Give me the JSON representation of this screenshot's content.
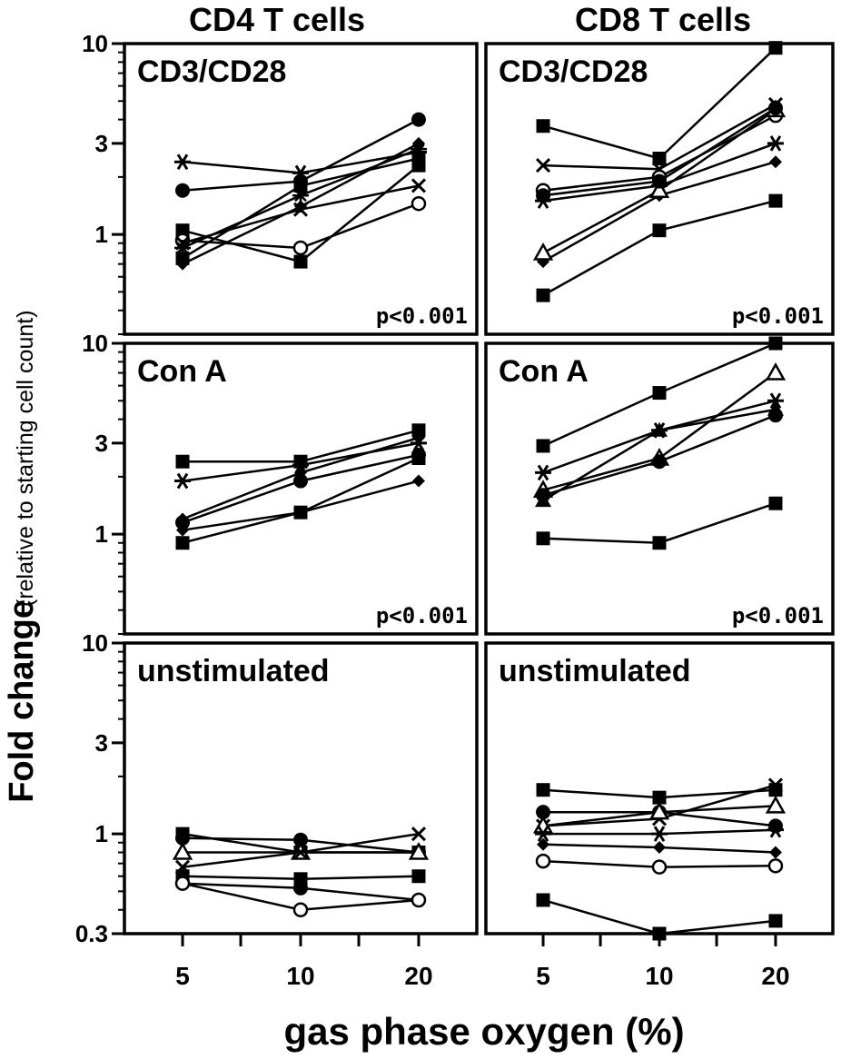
{
  "figure": {
    "column_titles": [
      "CD4 T cells",
      "CD8 T cells"
    ],
    "y_label_main": "Fold change",
    "y_label_sub": "(relative to starting cell count)",
    "x_label": "gas phase oxygen (%)",
    "x_ticks": [
      "5",
      "10",
      "20"
    ],
    "y_ticks_rows_1_2": [
      "10",
      "3",
      "1"
    ],
    "y_ticks_row_3": [
      "10",
      "3",
      "1",
      "0.3"
    ]
  },
  "chart_data": [
    {
      "type": "line",
      "column": "CD4 T cells",
      "row": 0,
      "label": "CD3/CD28",
      "pvalue": "p<0.001",
      "x": [
        5,
        10,
        20
      ],
      "xlabel": "gas phase oxygen (%)",
      "ylabel": "Fold change",
      "yscale": "log",
      "ylim": [
        0.3,
        10
      ],
      "grid": false,
      "series": [
        {
          "marker": "asterisk",
          "values": [
            2.4,
            2.1,
            2.7
          ]
        },
        {
          "marker": "circle",
          "values": [
            1.7,
            1.9,
            4.0
          ]
        },
        {
          "marker": "square",
          "values": [
            1.05,
            0.72,
            2.3
          ]
        },
        {
          "marker": "circle-open",
          "values": [
            0.93,
            0.85,
            1.45
          ]
        },
        {
          "marker": "diamond",
          "values": [
            0.7,
            1.4,
            3.0
          ]
        },
        {
          "marker": "square",
          "values": [
            0.75,
            1.8,
            2.5
          ]
        },
        {
          "marker": "cross",
          "values": [
            0.9,
            1.35,
            1.8
          ]
        },
        {
          "marker": "star",
          "values": [
            0.85,
            1.6,
            2.8
          ]
        }
      ]
    },
    {
      "type": "line",
      "column": "CD8 T cells",
      "row": 0,
      "label": "CD3/CD28",
      "pvalue": "p<0.001",
      "x": [
        5,
        10,
        20
      ],
      "xlabel": "gas phase oxygen (%)",
      "ylabel": "Fold change",
      "yscale": "log",
      "ylim": [
        0.3,
        10
      ],
      "grid": false,
      "series": [
        {
          "marker": "square",
          "values": [
            0.48,
            1.05,
            1.5
          ]
        },
        {
          "marker": "square",
          "values": [
            3.7,
            2.5,
            9.5
          ]
        },
        {
          "marker": "cross",
          "values": [
            2.3,
            2.2,
            4.8
          ]
        },
        {
          "marker": "circle-open",
          "values": [
            1.7,
            2.0,
            4.2
          ]
        },
        {
          "marker": "asterisk",
          "values": [
            1.5,
            1.8,
            3.0
          ]
        },
        {
          "marker": "diamond",
          "values": [
            0.72,
            1.6,
            2.4
          ]
        },
        {
          "marker": "triangle-open",
          "values": [
            0.8,
            1.7,
            4.5
          ]
        },
        {
          "marker": "circle",
          "values": [
            1.6,
            1.9,
            4.6
          ]
        }
      ]
    },
    {
      "type": "line",
      "column": "CD4 T cells",
      "row": 1,
      "label": "Con A",
      "pvalue": "p<0.001",
      "x": [
        5,
        10,
        20
      ],
      "xlabel": "gas phase oxygen (%)",
      "ylabel": "Fold change",
      "yscale": "log",
      "ylim": [
        0.3,
        10
      ],
      "grid": false,
      "series": [
        {
          "marker": "square",
          "values": [
            2.4,
            2.4,
            3.5
          ]
        },
        {
          "marker": "asterisk",
          "values": [
            1.9,
            2.3,
            3.0
          ]
        },
        {
          "marker": "diamond",
          "values": [
            1.2,
            2.1,
            3.2
          ]
        },
        {
          "marker": "circle",
          "values": [
            1.15,
            1.9,
            2.6
          ]
        },
        {
          "marker": "diamond",
          "values": [
            1.05,
            1.3,
            1.9
          ]
        },
        {
          "marker": "square",
          "values": [
            0.9,
            1.3,
            2.5
          ]
        }
      ]
    },
    {
      "type": "line",
      "column": "CD8 T cells",
      "row": 1,
      "label": "Con A",
      "pvalue": "p<0.001",
      "x": [
        5,
        10,
        20
      ],
      "xlabel": "gas phase oxygen (%)",
      "ylabel": "Fold change",
      "yscale": "log",
      "ylim": [
        0.3,
        10
      ],
      "grid": false,
      "series": [
        {
          "marker": "square",
          "values": [
            2.9,
            5.5,
            10.0
          ]
        },
        {
          "marker": "asterisk",
          "values": [
            2.1,
            3.5,
            5.0
          ]
        },
        {
          "marker": "triangle-open",
          "values": [
            1.7,
            2.5,
            7.0
          ]
        },
        {
          "marker": "circle",
          "values": [
            1.6,
            2.4,
            4.2
          ]
        },
        {
          "marker": "triangle",
          "values": [
            1.5,
            3.5,
            4.5
          ]
        },
        {
          "marker": "square",
          "values": [
            0.95,
            0.9,
            1.45
          ]
        }
      ]
    },
    {
      "type": "line",
      "column": "CD4 T cells",
      "row": 2,
      "label": "unstimulated",
      "pvalue": "",
      "x": [
        5,
        10,
        20
      ],
      "xlabel": "gas phase oxygen (%)",
      "ylabel": "Fold change",
      "yscale": "log",
      "ylim": [
        0.3,
        10
      ],
      "grid": false,
      "series": [
        {
          "marker": "square",
          "values": [
            1.0,
            0.8,
            0.8
          ]
        },
        {
          "marker": "circle",
          "values": [
            0.95,
            0.93,
            0.8
          ]
        },
        {
          "marker": "triangle-open",
          "values": [
            0.8,
            0.8,
            0.8
          ]
        },
        {
          "marker": "cross",
          "values": [
            0.67,
            0.8,
            1.0
          ]
        },
        {
          "marker": "square",
          "values": [
            0.6,
            0.58,
            0.6
          ]
        },
        {
          "marker": "circle",
          "values": [
            0.55,
            0.52,
            0.45
          ]
        },
        {
          "marker": "circle-open",
          "values": [
            0.55,
            0.4,
            0.45
          ]
        }
      ]
    },
    {
      "type": "line",
      "column": "CD8 T cells",
      "row": 2,
      "label": "unstimulated",
      "pvalue": "",
      "x": [
        5,
        10,
        20
      ],
      "xlabel": "gas phase oxygen (%)",
      "ylabel": "Fold change",
      "yscale": "log",
      "ylim": [
        0.3,
        10
      ],
      "grid": false,
      "series": [
        {
          "marker": "square",
          "values": [
            1.7,
            1.55,
            1.7
          ]
        },
        {
          "marker": "circle",
          "values": [
            1.3,
            1.3,
            1.1
          ]
        },
        {
          "marker": "cross",
          "values": [
            1.1,
            1.2,
            1.8
          ]
        },
        {
          "marker": "triangle-open",
          "values": [
            1.1,
            1.3,
            1.4
          ]
        },
        {
          "marker": "asterisk",
          "values": [
            1.0,
            1.0,
            1.05
          ]
        },
        {
          "marker": "diamond",
          "values": [
            0.88,
            0.85,
            0.8
          ]
        },
        {
          "marker": "circle-open",
          "values": [
            0.72,
            0.67,
            0.68
          ]
        },
        {
          "marker": "square",
          "values": [
            0.45,
            0.3,
            0.35
          ]
        }
      ]
    }
  ]
}
